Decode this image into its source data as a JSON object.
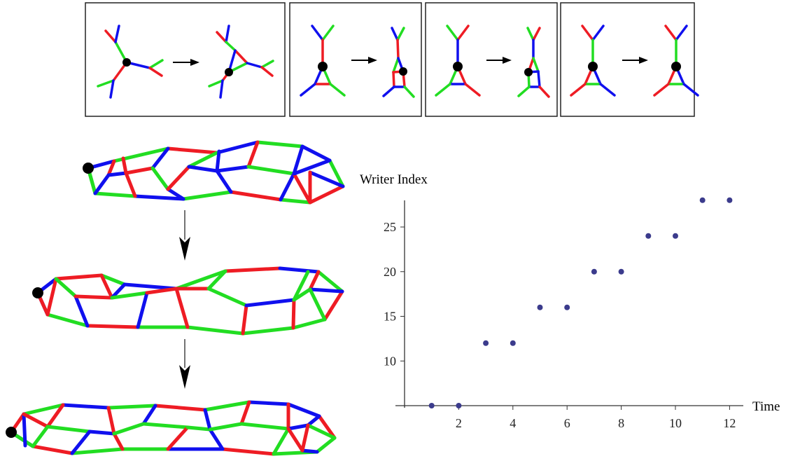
{
  "colors": {
    "red": "#ee1c24",
    "green": "#22dd22",
    "blue": "#1010ee",
    "node": "#000000",
    "point": "#3b3b8c"
  },
  "chart_data": {
    "type": "scatter",
    "xlabel": "Time",
    "ylabel": "Writer Index",
    "x_ticks": [
      2,
      4,
      6,
      8,
      10,
      12
    ],
    "y_ticks": [
      10,
      15,
      20,
      25
    ],
    "xlim": [
      0,
      12.5
    ],
    "ylim": [
      5,
      28.5
    ],
    "points": [
      {
        "x": 1,
        "y": 5
      },
      {
        "x": 2,
        "y": 5
      },
      {
        "x": 3,
        "y": 12
      },
      {
        "x": 4,
        "y": 12
      },
      {
        "x": 5,
        "y": 16
      },
      {
        "x": 6,
        "y": 16
      },
      {
        "x": 7,
        "y": 20
      },
      {
        "x": 8,
        "y": 20
      },
      {
        "x": 9,
        "y": 24
      },
      {
        "x": 10,
        "y": 24
      },
      {
        "x": 11,
        "y": 28
      },
      {
        "x": 12,
        "y": 28
      }
    ]
  }
}
